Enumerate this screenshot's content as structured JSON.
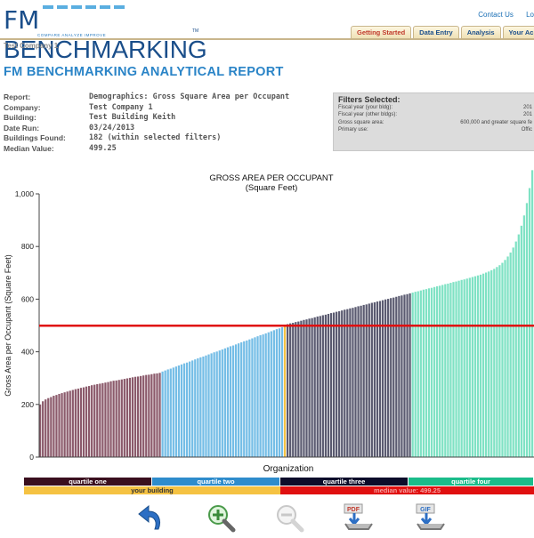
{
  "header": {
    "logo_fm": "FM",
    "logo_bench": "BENCHMARKING",
    "logo_tagline": "COMPARE   ANALYZE   IMPROVE",
    "logo_tm": "TM",
    "links": {
      "contact": "Contact Us",
      "logout": "Lo"
    },
    "tabs": [
      {
        "label": "Getting Started"
      },
      {
        "label": "Data Entry"
      },
      {
        "label": "Analysis"
      },
      {
        "label": "Your Ac"
      }
    ],
    "company": "Test Company 1"
  },
  "report": {
    "title": "FM BENCHMARKING ANALYTICAL REPORT",
    "rows": [
      {
        "k": "Report:",
        "v": "Demographics: Gross Square Area per Occupant"
      },
      {
        "k": "Company:",
        "v": "Test Company 1"
      },
      {
        "k": "Building:",
        "v": "Test Building Keith"
      },
      {
        "k": "Date Run:",
        "v": "03/24/2013"
      },
      {
        "k": "Buildings Found:",
        "v": "182 (within selected filters)"
      },
      {
        "k": "Median Value:",
        "v": "499.25"
      }
    ]
  },
  "filters": {
    "heading": "Filters Selected:",
    "rows": [
      {
        "k": "Fiscal year (your bldg):",
        "v": "201"
      },
      {
        "k": "Fiscal year (other bldgs):",
        "v": "201"
      },
      {
        "k": "Gross square area:",
        "v": "600,000 and greater square fe"
      },
      {
        "k": "Primary use:",
        "v": "Offic"
      }
    ]
  },
  "colors": {
    "q1": "#8b5a6b",
    "q2": "#74bde6",
    "q3": "#5a5a70",
    "q4": "#7fe2c4",
    "your": "#f5c242",
    "median": "#e01010",
    "q1_label_bg": "#3a0f1e",
    "q2_label_bg": "#2e8ccc",
    "q3_label_bg": "#0c0c2a",
    "q4_label_bg": "#1abc8a"
  },
  "chart_data": {
    "type": "bar",
    "title": "GROSS AREA PER OCCUPANT",
    "subtitle": "(Square Feet)",
    "xlabel": "Organization",
    "ylabel": "Gross Area per Occupant (Square Feet)",
    "ylim": [
      0,
      1000
    ],
    "yticks": [
      "0",
      "200",
      "400",
      "600",
      "800",
      "1,000"
    ],
    "median": 499.25,
    "grid": false,
    "quartile_segments": [
      {
        "name": "quartile one",
        "start": 200,
        "end": 320
      },
      {
        "name": "quartile two",
        "start": 325,
        "end": 497
      },
      {
        "name": "quartile three",
        "start": 505,
        "end": 622
      },
      {
        "name": "quartile four",
        "start": 625,
        "end": 1090
      }
    ],
    "your_building_value": 495,
    "bar_count": 182
  },
  "legend": {
    "q1": "quartile one",
    "q2": "quartile two",
    "q3": "quartile three",
    "q4": "quartile four",
    "your": "your building",
    "median": "median value: 499.25"
  },
  "tools": [
    {
      "name": "back-icon"
    },
    {
      "name": "zoom-in-icon"
    },
    {
      "name": "zoom-out-icon"
    },
    {
      "name": "pdf-download-icon",
      "label": "PDF"
    },
    {
      "name": "gif-download-icon",
      "label": "GIF"
    }
  ]
}
